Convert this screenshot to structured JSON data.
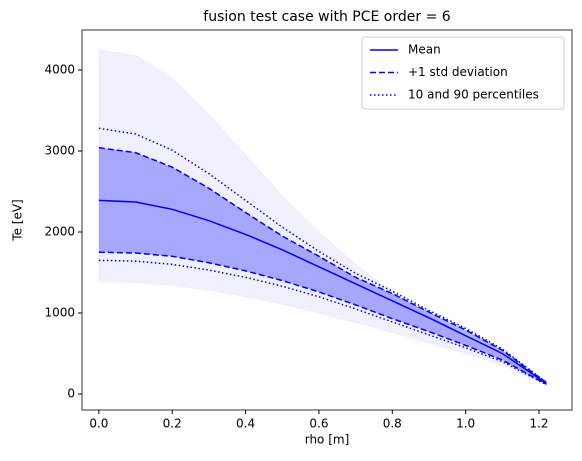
{
  "chart_data": {
    "type": "line",
    "title": "fusion test case with PCE order = 6",
    "xlabel": "rho [m]",
    "ylabel": "Te [eV]",
    "x": [
      0,
      0.1,
      0.2,
      0.3,
      0.4,
      0.5,
      0.6,
      0.7,
      0.8,
      0.9,
      1.0,
      1.1,
      1.22
    ],
    "series": [
      {
        "name": "Mean",
        "color": "#0000ff",
        "style": "solid",
        "values": [
          2390,
          2370,
          2280,
          2140,
          1970,
          1780,
          1570,
          1360,
          1150,
          940,
          720,
          500,
          130
        ]
      },
      {
        "name": "+1 std deviation",
        "color": "#0000ff",
        "style": "dashed",
        "fill_opacity": 0.3,
        "values": [
          3040,
          2980,
          2800,
          2540,
          2240,
          1950,
          1700,
          1440,
          1240,
          1010,
          790,
          540,
          140
        ],
        "lower_values": [
          1750,
          1740,
          1700,
          1620,
          1520,
          1400,
          1260,
          1100,
          930,
          770,
          600,
          420,
          120
        ]
      },
      {
        "name": "10 and 90 percentiles",
        "color": "#0000ff",
        "style": "dotted",
        "values": [
          3280,
          3210,
          3010,
          2720,
          2390,
          2060,
          1760,
          1490,
          1270,
          1030,
          810,
          555,
          145
        ],
        "lower_values": [
          1650,
          1640,
          1600,
          1530,
          1440,
          1330,
          1200,
          1050,
          890,
          730,
          570,
          400,
          115
        ]
      }
    ],
    "outer_band": {
      "color": "#0000ff",
      "opacity": 0.06,
      "upper": [
        4250,
        4180,
        3900,
        3450,
        2950,
        2450,
        2000,
        1600,
        1260,
        970,
        720,
        480,
        150
      ],
      "lower": [
        1390,
        1380,
        1340,
        1280,
        1200,
        1110,
        1000,
        880,
        760,
        630,
        500,
        360,
        110
      ]
    },
    "xlim": [
      -0.046,
      1.29
    ],
    "ylim": [
      -198,
      4494
    ],
    "xticks": [
      {
        "value": 0,
        "label": "0.0"
      },
      0.2,
      0.4,
      0.6,
      0.8,
      {
        "value": 1,
        "label": "1.0"
      },
      1.2
    ],
    "yticks": [
      0,
      1000,
      2000,
      3000,
      4000
    ],
    "legend": "upper right",
    "grid": false
  }
}
